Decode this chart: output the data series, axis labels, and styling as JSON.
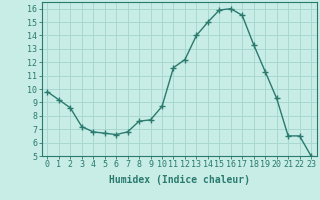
{
  "x": [
    0,
    1,
    2,
    3,
    4,
    5,
    6,
    7,
    8,
    9,
    10,
    11,
    12,
    13,
    14,
    15,
    16,
    17,
    18,
    19,
    20,
    21,
    22,
    23
  ],
  "y": [
    9.8,
    9.2,
    8.6,
    7.2,
    6.8,
    6.7,
    6.6,
    6.8,
    7.6,
    7.7,
    8.7,
    11.6,
    12.2,
    14.0,
    15.0,
    15.9,
    16.0,
    15.5,
    13.3,
    11.3,
    9.3,
    6.5,
    6.5,
    5.0
  ],
  "bg_color": "#c8ece6",
  "line_color": "#2a7a6e",
  "marker_color": "#2a7a6e",
  "grid_color": "#a8d8d0",
  "xlabel": "Humidex (Indice chaleur)",
  "xlim": [
    -0.5,
    23.5
  ],
  "ylim": [
    5,
    16.5
  ],
  "xticks": [
    0,
    1,
    2,
    3,
    4,
    5,
    6,
    7,
    8,
    9,
    10,
    11,
    12,
    13,
    14,
    15,
    16,
    17,
    18,
    19,
    20,
    21,
    22,
    23
  ],
  "yticks": [
    5,
    6,
    7,
    8,
    9,
    10,
    11,
    12,
    13,
    14,
    15,
    16
  ],
  "tick_fontsize": 6,
  "label_fontsize": 7
}
